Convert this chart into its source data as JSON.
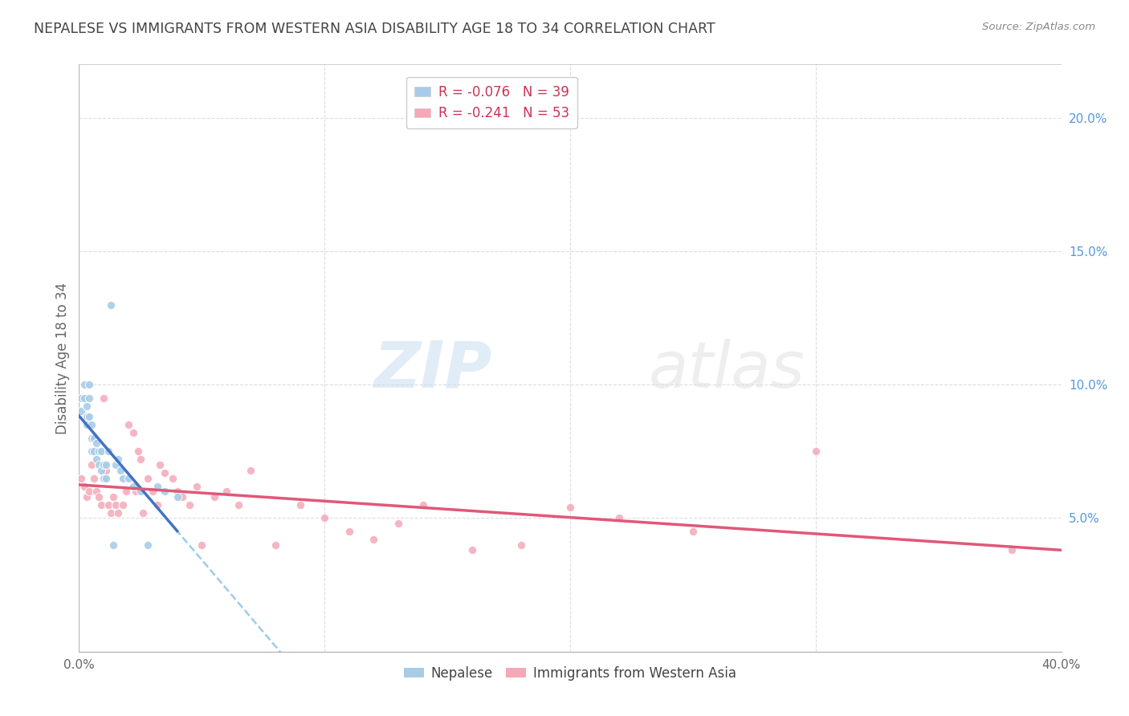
{
  "title": "NEPALESE VS IMMIGRANTS FROM WESTERN ASIA DISABILITY AGE 18 TO 34 CORRELATION CHART",
  "source": "Source: ZipAtlas.com",
  "ylabel": "Disability Age 18 to 34",
  "watermark_zip": "ZIP",
  "watermark_atlas": "atlas",
  "legend_label1": "Nepalese",
  "legend_label2": "Immigrants from Western Asia",
  "legend_r1": "R = ",
  "legend_r1_val": "-0.076",
  "legend_n1": "   N = ",
  "legend_n1_val": "39",
  "legend_r2": "R = ",
  "legend_r2_val": "-0.241",
  "legend_n2": "   N = ",
  "legend_n2_val": "53",
  "xlim": [
    0.0,
    0.4
  ],
  "ylim": [
    0.0,
    0.22
  ],
  "yticks_right": [
    0.05,
    0.1,
    0.15,
    0.2
  ],
  "yticks_right_labels": [
    "5.0%",
    "10.0%",
    "15.0%",
    "20.0%"
  ],
  "nepalese_x": [
    0.001,
    0.001,
    0.002,
    0.002,
    0.003,
    0.003,
    0.003,
    0.004,
    0.004,
    0.004,
    0.005,
    0.005,
    0.005,
    0.006,
    0.006,
    0.007,
    0.007,
    0.008,
    0.008,
    0.009,
    0.009,
    0.01,
    0.01,
    0.011,
    0.011,
    0.012,
    0.013,
    0.014,
    0.015,
    0.016,
    0.017,
    0.018,
    0.02,
    0.022,
    0.025,
    0.028,
    0.032,
    0.035,
    0.04
  ],
  "nepalese_y": [
    0.095,
    0.09,
    0.1,
    0.095,
    0.092,
    0.088,
    0.085,
    0.1,
    0.095,
    0.088,
    0.085,
    0.08,
    0.075,
    0.08,
    0.075,
    0.078,
    0.072,
    0.075,
    0.07,
    0.075,
    0.068,
    0.07,
    0.065,
    0.07,
    0.065,
    0.075,
    0.13,
    0.04,
    0.07,
    0.072,
    0.068,
    0.065,
    0.065,
    0.062,
    0.06,
    0.04,
    0.062,
    0.06,
    0.058
  ],
  "western_x": [
    0.001,
    0.002,
    0.003,
    0.004,
    0.005,
    0.006,
    0.007,
    0.008,
    0.009,
    0.01,
    0.011,
    0.012,
    0.013,
    0.014,
    0.015,
    0.016,
    0.018,
    0.019,
    0.02,
    0.022,
    0.023,
    0.024,
    0.025,
    0.026,
    0.028,
    0.03,
    0.032,
    0.033,
    0.035,
    0.038,
    0.04,
    0.042,
    0.045,
    0.048,
    0.05,
    0.055,
    0.06,
    0.065,
    0.07,
    0.08,
    0.09,
    0.1,
    0.11,
    0.12,
    0.13,
    0.14,
    0.16,
    0.18,
    0.2,
    0.22,
    0.25,
    0.3,
    0.38
  ],
  "western_y": [
    0.065,
    0.062,
    0.058,
    0.06,
    0.07,
    0.065,
    0.06,
    0.058,
    0.055,
    0.095,
    0.068,
    0.055,
    0.052,
    0.058,
    0.055,
    0.052,
    0.055,
    0.06,
    0.085,
    0.082,
    0.06,
    0.075,
    0.072,
    0.052,
    0.065,
    0.06,
    0.055,
    0.07,
    0.067,
    0.065,
    0.06,
    0.058,
    0.055,
    0.062,
    0.04,
    0.058,
    0.06,
    0.055,
    0.068,
    0.04,
    0.055,
    0.05,
    0.045,
    0.042,
    0.048,
    0.055,
    0.038,
    0.04,
    0.054,
    0.05,
    0.045,
    0.075,
    0.038
  ],
  "nepalese_color": "#a8cce8",
  "western_color": "#f4a8b8",
  "nepalese_trend_color": "#4472c4",
  "western_trend_color": "#e05878",
  "dashed_trend_color": "#90c8e8",
  "background_color": "#ffffff",
  "grid_color": "#dddddd",
  "title_color": "#444444",
  "right_axis_color": "#5599dd",
  "source_color": "#888888"
}
